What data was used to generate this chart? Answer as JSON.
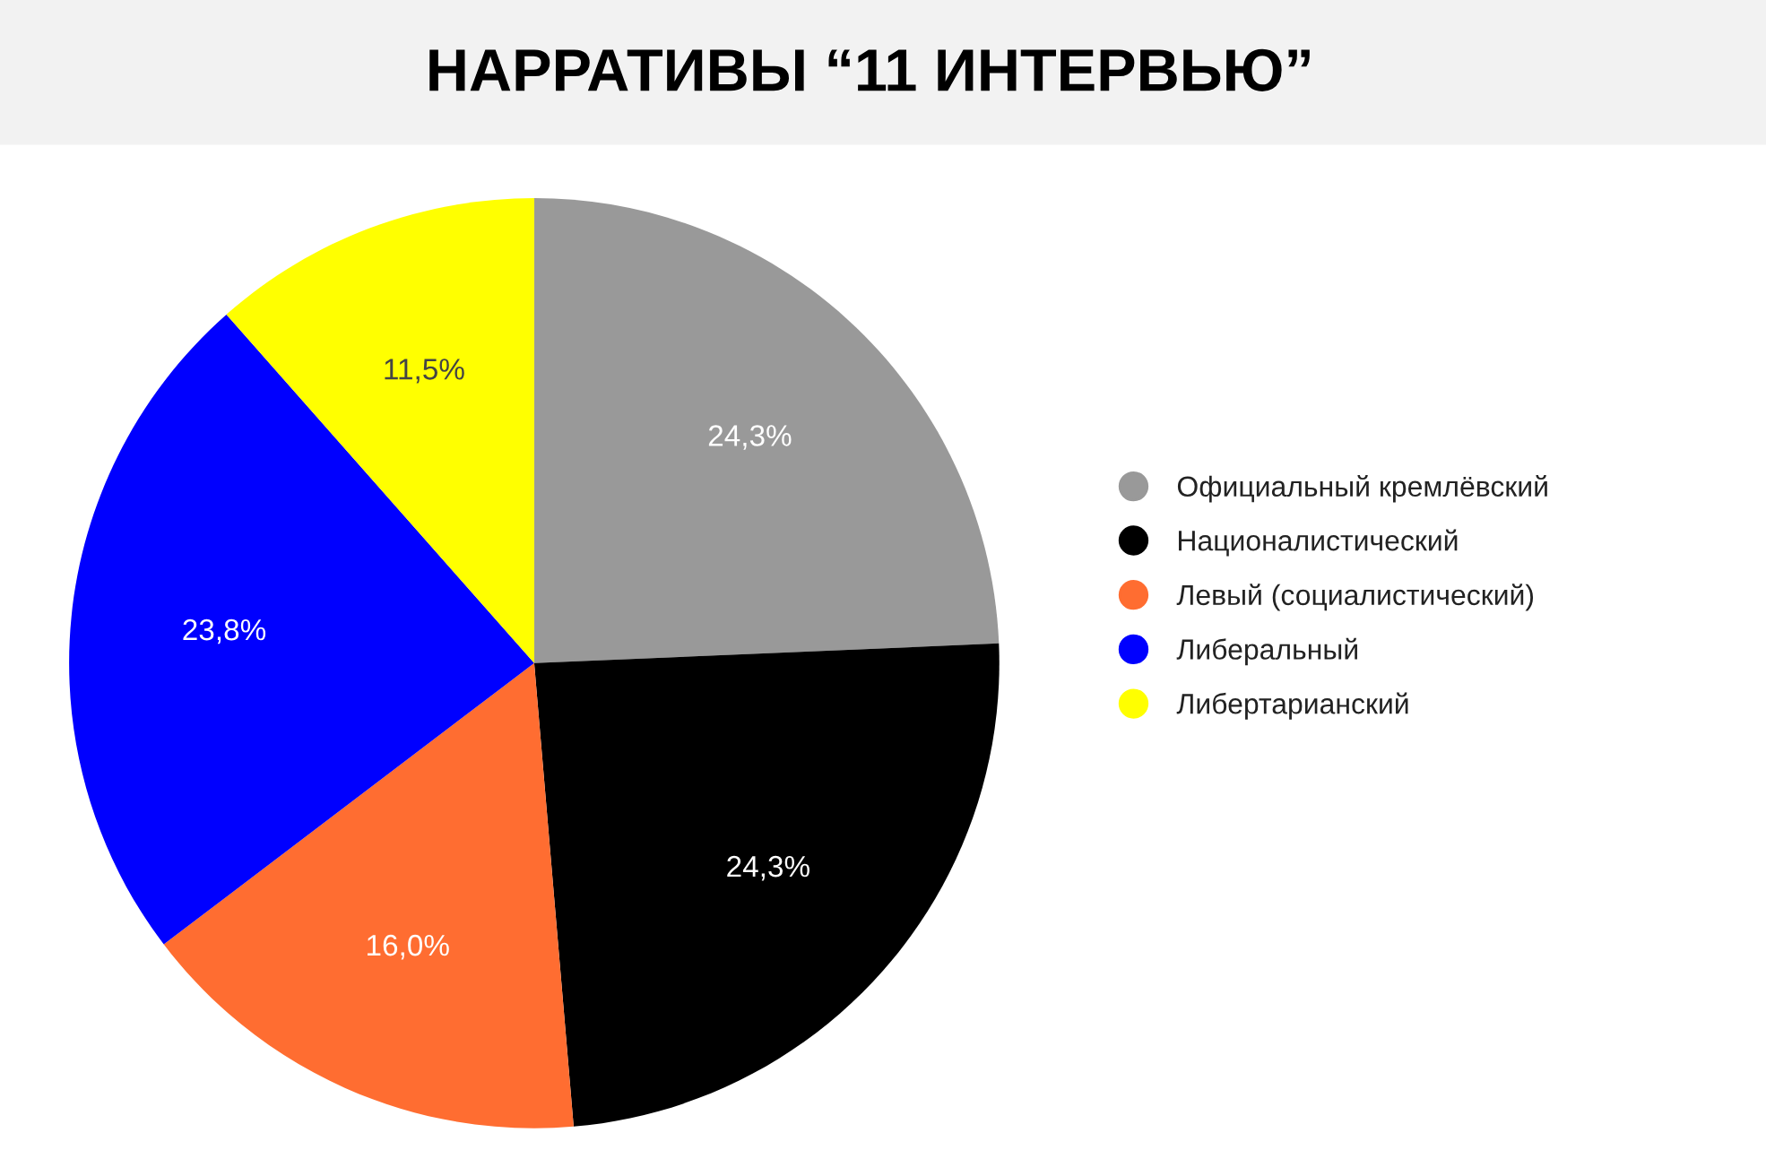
{
  "chart_data": {
    "type": "pie",
    "title": "НАРРАТИВЫ “11 ИНТЕРВЬЮ”",
    "categories": [
      "Официальный кремлёвский",
      "Националистический",
      "Левый (социалистический)",
      "Либеральный",
      "Либертарианский"
    ],
    "values": [
      24.3,
      24.3,
      16.0,
      23.8,
      11.5
    ],
    "value_labels": [
      "24,3%",
      "24,3%",
      "16,0%",
      "23,8%",
      "11,5%"
    ],
    "colors": [
      "#999999",
      "#000000",
      "#ff6d31",
      "#0000ff",
      "#ffff00"
    ],
    "legend": "right"
  }
}
